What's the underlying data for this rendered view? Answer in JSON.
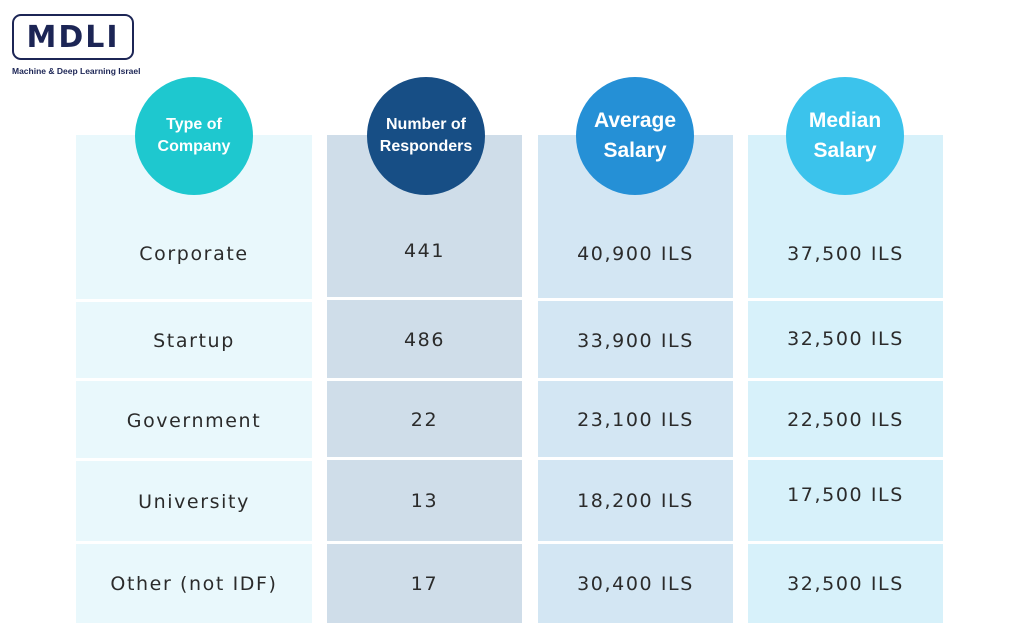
{
  "logo": {
    "text": "MDLI",
    "tagline": "Machine & Deep Learning Israel"
  },
  "colors": {
    "type_column": "#e9f8fc",
    "responders_column": "#cfdde9",
    "average_column": "#d3e6f3",
    "median_column": "#d7f1fa",
    "type_circle": "#1ec8cf",
    "responders_circle": "#174e85",
    "average_circle": "#2590d6",
    "median_circle": "#3bc3ec"
  },
  "chart_data": {
    "type": "table",
    "headers": [
      [
        "Type of",
        "Company"
      ],
      [
        "Number of",
        "Responders"
      ],
      [
        "Average",
        "Salary"
      ],
      [
        "Median",
        "Salary"
      ]
    ],
    "rows": [
      {
        "type": "Corporate",
        "responders": "441",
        "average": "40,900 ILS",
        "median": "37,500 ILS"
      },
      {
        "type": "Startup",
        "responders": "486",
        "average": "33,900 ILS",
        "median": "32,500 ILS"
      },
      {
        "type": "Government",
        "responders": "22",
        "average": "23,100 ILS",
        "median": "22,500 ILS"
      },
      {
        "type": "University",
        "responders": "13",
        "average": "18,200 ILS",
        "median": "17,500 ILS"
      },
      {
        "type": "Other (not IDF)",
        "responders": "17",
        "average": "30,400 ILS",
        "median": "32,500 ILS"
      }
    ]
  }
}
